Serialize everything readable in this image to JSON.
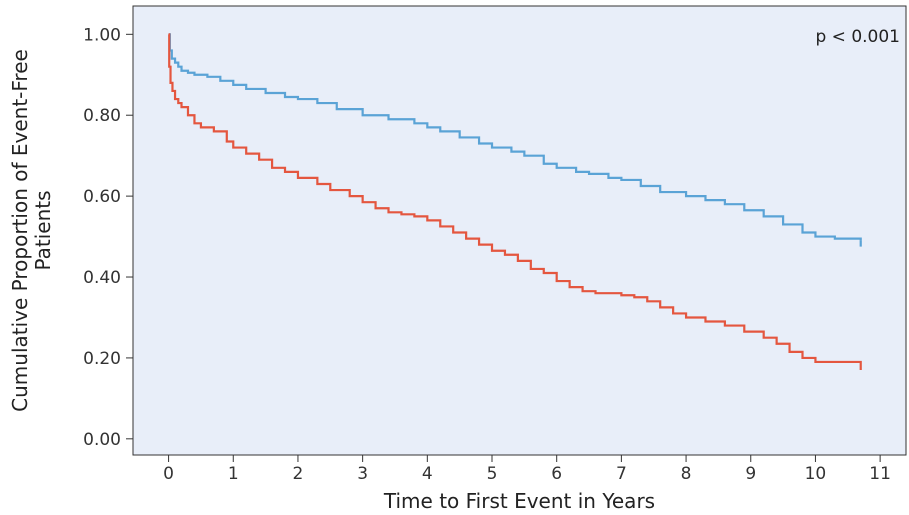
{
  "chart_data": {
    "type": "line",
    "step": true,
    "xlabel": "Time to First Event in Years",
    "ylabel_lines": [
      "Cumulative Proportion of Event-Free",
      "Patients"
    ],
    "annotation": "p < 0.001",
    "xlim": [
      -0.55,
      11.4
    ],
    "ylim": [
      -0.04,
      1.07
    ],
    "x_ticks": [
      0,
      1,
      2,
      3,
      4,
      5,
      6,
      7,
      8,
      9,
      10,
      11
    ],
    "y_ticks": [
      0.0,
      0.2,
      0.4,
      0.6,
      0.8,
      1.0
    ],
    "y_tick_labels": [
      "0.00",
      "0.20",
      "0.40",
      "0.60",
      "0.80",
      "1.00"
    ],
    "grid": false,
    "legend": "none",
    "series": [
      {
        "color": "#5aa3d6",
        "points": [
          [
            0.0,
            1.0
          ],
          [
            0.02,
            0.96
          ],
          [
            0.05,
            0.94
          ],
          [
            0.1,
            0.93
          ],
          [
            0.15,
            0.92
          ],
          [
            0.2,
            0.91
          ],
          [
            0.3,
            0.905
          ],
          [
            0.4,
            0.9
          ],
          [
            0.6,
            0.895
          ],
          [
            0.8,
            0.885
          ],
          [
            1.0,
            0.875
          ],
          [
            1.2,
            0.865
          ],
          [
            1.5,
            0.855
          ],
          [
            1.8,
            0.845
          ],
          [
            2.0,
            0.84
          ],
          [
            2.3,
            0.83
          ],
          [
            2.6,
            0.815
          ],
          [
            3.0,
            0.8
          ],
          [
            3.4,
            0.79
          ],
          [
            3.8,
            0.78
          ],
          [
            4.0,
            0.77
          ],
          [
            4.2,
            0.76
          ],
          [
            4.5,
            0.745
          ],
          [
            4.8,
            0.73
          ],
          [
            5.0,
            0.72
          ],
          [
            5.3,
            0.71
          ],
          [
            5.5,
            0.7
          ],
          [
            5.8,
            0.68
          ],
          [
            6.0,
            0.67
          ],
          [
            6.3,
            0.66
          ],
          [
            6.5,
            0.655
          ],
          [
            6.8,
            0.645
          ],
          [
            7.0,
            0.64
          ],
          [
            7.3,
            0.625
          ],
          [
            7.6,
            0.61
          ],
          [
            8.0,
            0.6
          ],
          [
            8.3,
            0.59
          ],
          [
            8.6,
            0.58
          ],
          [
            8.9,
            0.565
          ],
          [
            9.2,
            0.55
          ],
          [
            9.5,
            0.53
          ],
          [
            9.8,
            0.51
          ],
          [
            10.0,
            0.5
          ],
          [
            10.3,
            0.495
          ],
          [
            10.7,
            0.49
          ]
        ]
      },
      {
        "color": "#e4563f",
        "points": [
          [
            0.0,
            1.0
          ],
          [
            0.01,
            0.92
          ],
          [
            0.03,
            0.88
          ],
          [
            0.06,
            0.86
          ],
          [
            0.1,
            0.84
          ],
          [
            0.15,
            0.83
          ],
          [
            0.2,
            0.82
          ],
          [
            0.3,
            0.8
          ],
          [
            0.4,
            0.78
          ],
          [
            0.5,
            0.77
          ],
          [
            0.7,
            0.76
          ],
          [
            0.9,
            0.735
          ],
          [
            1.0,
            0.72
          ],
          [
            1.2,
            0.705
          ],
          [
            1.4,
            0.69
          ],
          [
            1.6,
            0.67
          ],
          [
            1.8,
            0.66
          ],
          [
            2.0,
            0.645
          ],
          [
            2.3,
            0.63
          ],
          [
            2.5,
            0.615
          ],
          [
            2.8,
            0.6
          ],
          [
            3.0,
            0.585
          ],
          [
            3.2,
            0.57
          ],
          [
            3.4,
            0.56
          ],
          [
            3.6,
            0.555
          ],
          [
            3.8,
            0.55
          ],
          [
            4.0,
            0.54
          ],
          [
            4.2,
            0.525
          ],
          [
            4.4,
            0.51
          ],
          [
            4.6,
            0.495
          ],
          [
            4.8,
            0.48
          ],
          [
            5.0,
            0.465
          ],
          [
            5.2,
            0.455
          ],
          [
            5.4,
            0.44
          ],
          [
            5.6,
            0.42
          ],
          [
            5.8,
            0.41
          ],
          [
            6.0,
            0.39
          ],
          [
            6.2,
            0.375
          ],
          [
            6.4,
            0.365
          ],
          [
            6.6,
            0.36
          ],
          [
            7.0,
            0.355
          ],
          [
            7.2,
            0.35
          ],
          [
            7.4,
            0.34
          ],
          [
            7.6,
            0.325
          ],
          [
            7.8,
            0.31
          ],
          [
            8.0,
            0.3
          ],
          [
            8.3,
            0.29
          ],
          [
            8.6,
            0.28
          ],
          [
            8.9,
            0.265
          ],
          [
            9.2,
            0.25
          ],
          [
            9.4,
            0.235
          ],
          [
            9.6,
            0.215
          ],
          [
            9.8,
            0.2
          ],
          [
            10.0,
            0.19
          ],
          [
            10.7,
            0.185
          ]
        ]
      }
    ]
  },
  "style": {
    "plot_background": "#e8eef9",
    "axis_color": "#333333"
  }
}
